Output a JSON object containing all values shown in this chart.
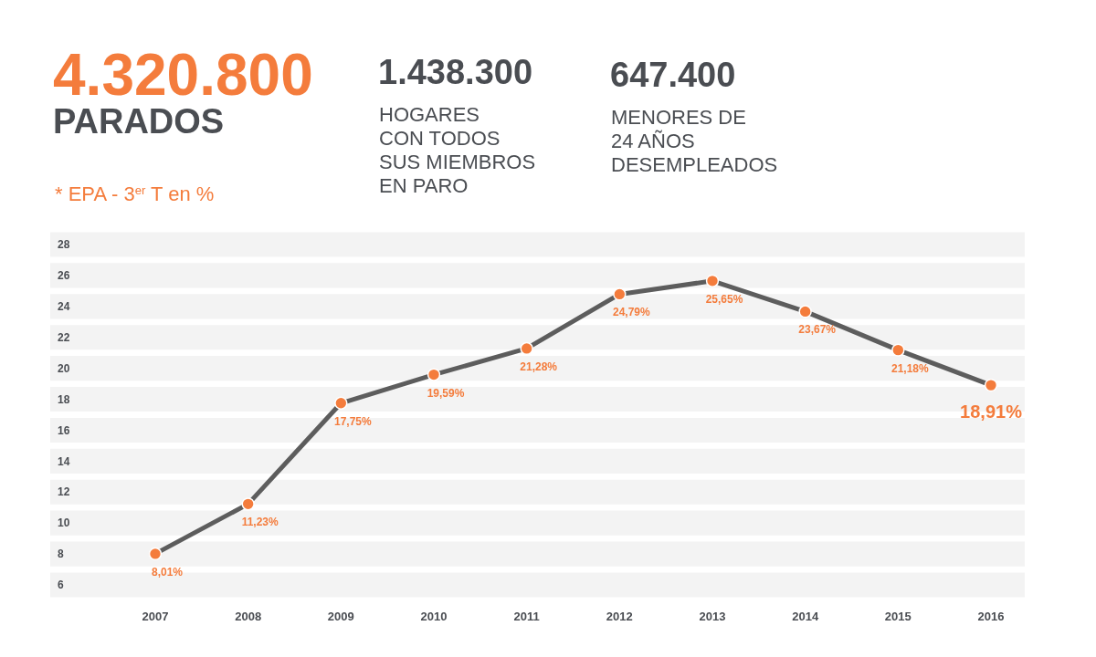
{
  "chart_data": {
    "type": "line",
    "title": "4.320.800",
    "subtitle": "PARADOS",
    "annotations": [
      "* EPA - 3$^{er}$ T en %",
      "1.438.300",
      "HOGARES\nCON TODOS\nSUS MIEMBROS\nEN PARO",
      "647.400",
      "MENORES DE\n24 AÑOS\nDESEMPLEADOS"
    ],
    "categories": [
      "2007",
      "2008",
      "2009",
      "2010",
      "2011",
      "2012",
      "2013",
      "2014",
      "2015",
      "2016"
    ],
    "series": [
      {
        "color": "#5d5d5d",
        "values": [
          8.01,
          11.23,
          17.75,
          19.59,
          21.28,
          24.79,
          25.65,
          23.67,
          21.18,
          18.91
        ]
      }
    ],
    "value_labels": [
      "8,01%",
      "11,23%",
      "17,75%",
      "19,59%",
      "21,28%",
      "24,79%",
      "25,65%",
      "23,67%",
      "21,18%",
      "18,91%"
    ],
    "ylim": [
      6,
      28
    ],
    "yticks": [
      6,
      8,
      10,
      12,
      14,
      16,
      18,
      20,
      22,
      24,
      26,
      28
    ],
    "grid": "y",
    "marker": "circle",
    "line_style": "solid"
  }
}
